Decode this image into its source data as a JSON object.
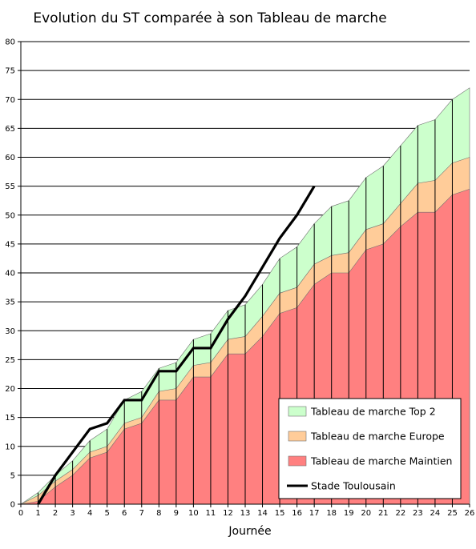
{
  "chart_data": {
    "type": "area",
    "title": "Evolution du ST comparée à son Tableau de marche",
    "xlabel": "Journée",
    "ylabel": "",
    "xlim": [
      0,
      26
    ],
    "ylim": [
      0,
      80
    ],
    "x": [
      0,
      1,
      2,
      3,
      4,
      5,
      6,
      7,
      8,
      9,
      10,
      11,
      12,
      13,
      14,
      15,
      16,
      17,
      18,
      19,
      20,
      21,
      22,
      23,
      24,
      25,
      26
    ],
    "y_ticks": [
      0,
      5,
      10,
      15,
      20,
      25,
      30,
      35,
      40,
      45,
      50,
      55,
      60,
      65,
      70,
      75,
      80
    ],
    "grid": "horizontal",
    "legend_position": "bottom-right",
    "series": [
      {
        "name": "Tableau de marche Top 2",
        "kind": "area",
        "color": "#ccffcc",
        "values": [
          0,
          2,
          5,
          7.5,
          11,
          13,
          18,
          19.5,
          23.5,
          24.5,
          28.5,
          29.5,
          33.5,
          34.5,
          38,
          42.5,
          44.5,
          48.5,
          51.5,
          52.5,
          56.5,
          58.5,
          62,
          65.5,
          66.5,
          70,
          72
        ]
      },
      {
        "name": "Tableau de marche Europe",
        "kind": "area",
        "color": "#ffcc99",
        "values": [
          0,
          1.5,
          4,
          6,
          9,
          10,
          14,
          15,
          19.5,
          20,
          24,
          24.5,
          28.5,
          29,
          32.5,
          36.5,
          37.5,
          41.5,
          43,
          43.5,
          47.5,
          48.5,
          52,
          55.5,
          56,
          59,
          60
        ]
      },
      {
        "name": "Tableau de marche Maintien",
        "kind": "area",
        "color": "#ff8080",
        "values": [
          0,
          0.5,
          3,
          5,
          8,
          9,
          13,
          14,
          18,
          18,
          22,
          22,
          26,
          26,
          29,
          33,
          34,
          38,
          40,
          40,
          44,
          45,
          48,
          50.5,
          50.5,
          53.5,
          54.5
        ]
      },
      {
        "name": "Stade Toulousain",
        "kind": "line",
        "color": "#000000",
        "values": [
          null,
          0,
          5,
          9,
          13,
          14,
          18,
          18,
          23,
          23,
          27,
          27,
          32,
          36,
          41,
          46,
          50,
          55,
          null,
          null,
          null,
          null,
          null,
          null,
          null,
          null,
          null
        ]
      }
    ]
  }
}
